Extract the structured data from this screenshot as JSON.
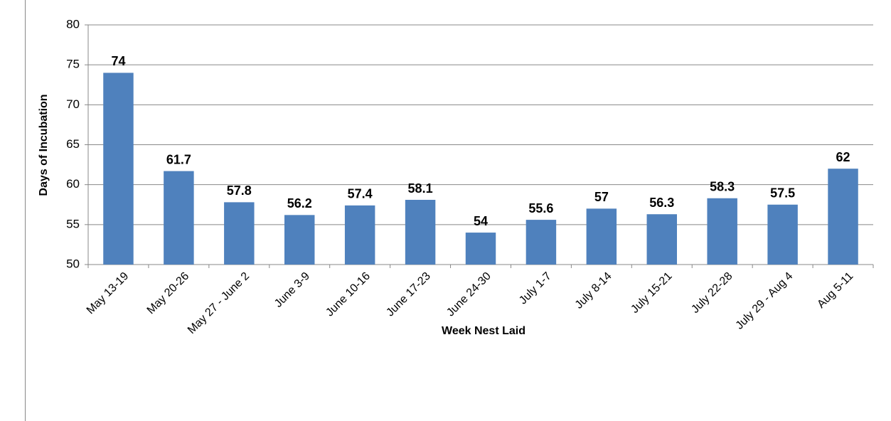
{
  "chart_data": {
    "type": "bar",
    "x_label": "Week Nest Laid",
    "y_label": "Days of Incubation",
    "categories": [
      "May 13-19",
      "May 20-26",
      "May 27 - June 2",
      "June 3-9",
      "June 10-16",
      "June 17-23",
      "June 24-30",
      "July 1-7",
      "July 8-14",
      "July 15-21",
      "July 22-28",
      "July 29 - Aug 4",
      "Aug 5-11"
    ],
    "values": [
      74,
      61.7,
      57.8,
      56.2,
      57.4,
      58.1,
      54,
      55.6,
      57,
      56.3,
      58.3,
      57.5,
      62
    ],
    "color": "#4f81bd",
    "ylim": [
      50,
      80
    ],
    "yticks": [
      50,
      55,
      60,
      65,
      70,
      75,
      80
    ],
    "grid": true
  }
}
